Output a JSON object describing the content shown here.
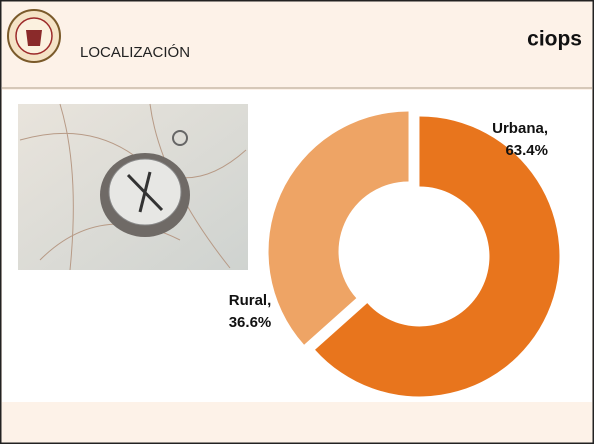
{
  "header": {
    "title": "LOCALIZACIÓN",
    "logo": "ciops"
  },
  "chart_data": {
    "type": "pie",
    "categories": [
      "Urbana,",
      "Rural,"
    ],
    "values": [
      63.4,
      36.6
    ],
    "value_labels": [
      "63.4%",
      "36.6%"
    ],
    "colors": [
      "#e8751d",
      "#eea465"
    ]
  }
}
